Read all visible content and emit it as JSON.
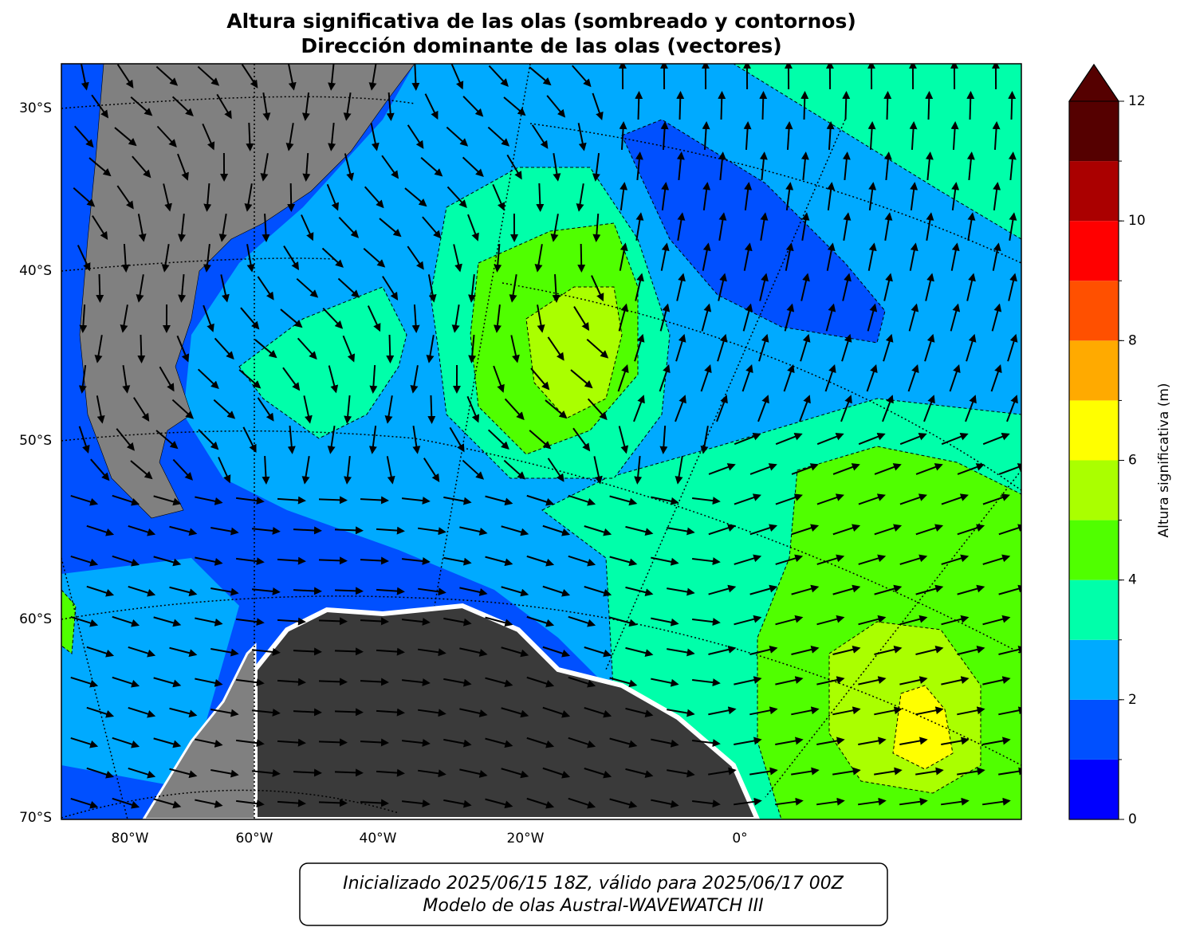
{
  "title": {
    "line1": "Altura significativa de las olas (sombreado y contornos)",
    "line2": "Dirección dominante de las olas (vectores)"
  },
  "map": {
    "lat_labels": [
      "30°S",
      "40°S",
      "50°S",
      "60°S",
      "70°S"
    ],
    "lon_labels": [
      "80°W",
      "60°W",
      "40°W",
      "20°W",
      "0°"
    ]
  },
  "colorbar": {
    "label": "Altura significativa (m)",
    "levels": [
      0,
      1,
      2,
      3,
      4,
      5,
      6,
      7,
      8,
      9,
      10,
      11,
      12
    ],
    "colors": [
      "#0000ff",
      "#0050ff",
      "#00aaff",
      "#00ffaa",
      "#50ff00",
      "#aaff00",
      "#ffff00",
      "#ffaa00",
      "#ff5000",
      "#ff0000",
      "#aa0000",
      "#550000"
    ],
    "ticks": [
      0,
      2,
      4,
      6,
      8,
      10,
      12
    ],
    "extend": "max"
  },
  "footer": {
    "line1": "Inicializado 2025/06/15 18Z, válido para 2025/06/17 00Z",
    "line2": "Modelo de olas Austral-WAVEWATCH III"
  }
}
